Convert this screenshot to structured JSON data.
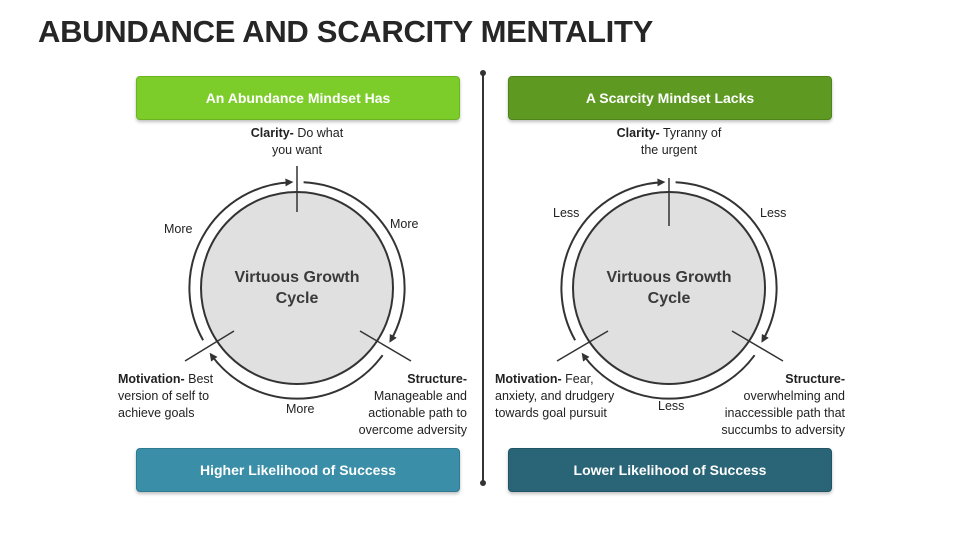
{
  "title": "ABUNDANCE AND SCARCITY MENTALITY",
  "colors": {
    "left_header": "#7ccd2a",
    "right_header": "#5e9a22",
    "left_footer": "#3a8ea8",
    "right_footer": "#2a6577",
    "circle_fill": "#e0e0e0"
  },
  "left": {
    "header": "An Abundance Mindset Has",
    "center": [
      "Virtuous Growth",
      "Cycle"
    ],
    "clarity": {
      "term": "Clarity-",
      "rest1": " Do what",
      "rest2": "you want"
    },
    "motivation": {
      "term": "Motivation-",
      "rest1": " Best",
      "rest2": "version of self to",
      "rest3": "achieve goals"
    },
    "structure": {
      "term": "Structure-",
      "rest1": "Manageable and",
      "rest2": "actionable path to",
      "rest3": "overcome adversity"
    },
    "arrow_labels": [
      "More",
      "More",
      "More"
    ],
    "footer": "Higher Likelihood of Success"
  },
  "right": {
    "header": "A Scarcity Mindset Lacks",
    "center": [
      "Virtuous Growth",
      "Cycle"
    ],
    "clarity": {
      "term": "Clarity-",
      "rest1": " Tyranny of",
      "rest2": "the urgent"
    },
    "motivation": {
      "term": "Motivation-",
      "rest1": " Fear,",
      "rest2": "anxiety, and drudgery",
      "rest3": "towards goal pursuit"
    },
    "structure": {
      "term": "Structure-",
      "rest1": "overwhelming and",
      "rest2": "inaccessible path that",
      "rest3": "succumbs to adversity"
    },
    "arrow_labels": [
      "Less",
      "Less",
      "Less"
    ],
    "footer": "Lower Likelihood of Success"
  }
}
